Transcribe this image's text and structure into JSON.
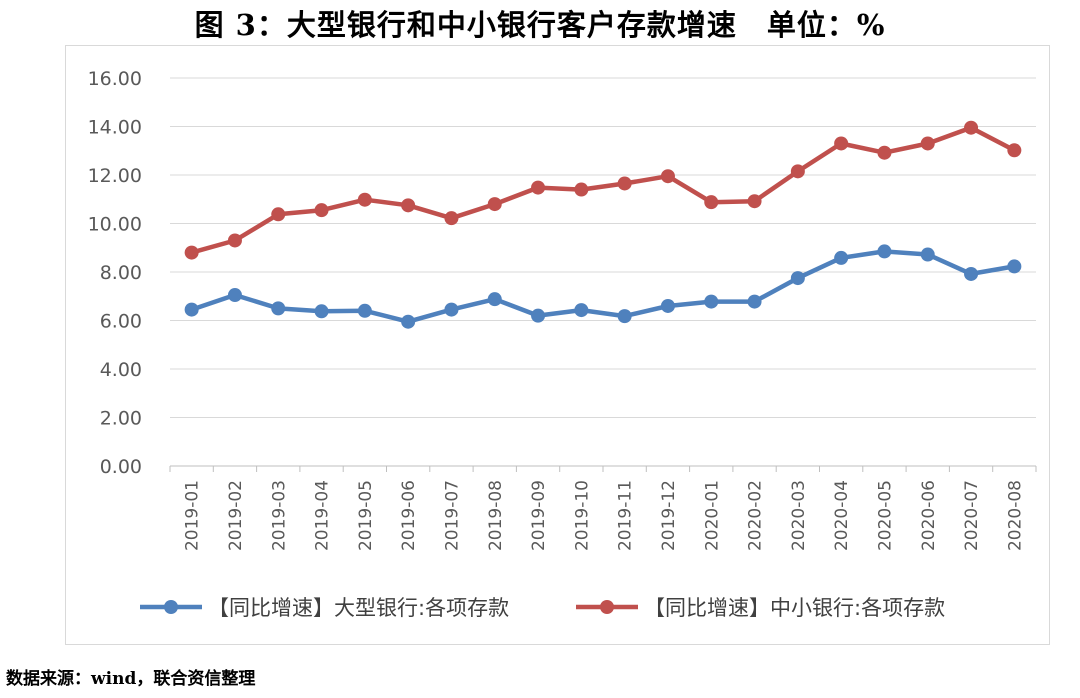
{
  "title": "图 3：大型银行和中小银行客户存款增速　单位：%",
  "source": "数据来源：wind，联合资信整理",
  "chart_data": {
    "type": "line",
    "categories": [
      "2019-01",
      "2019-02",
      "2019-03",
      "2019-04",
      "2019-05",
      "2019-06",
      "2019-07",
      "2019-08",
      "2019-09",
      "2019-10",
      "2019-11",
      "2019-12",
      "2020-01",
      "2020-02",
      "2020-03",
      "2020-04",
      "2020-05",
      "2020-06",
      "2020-07",
      "2020-08"
    ],
    "series": [
      {
        "name": "【同比增速】大型银行:各项存款",
        "color": "#4f81bd",
        "values": [
          6.45,
          7.05,
          6.5,
          6.38,
          6.4,
          5.95,
          6.45,
          6.88,
          6.2,
          6.43,
          6.18,
          6.6,
          6.78,
          6.78,
          7.75,
          8.58,
          8.85,
          8.72,
          7.92,
          8.23
        ]
      },
      {
        "name": "【同比增速】中小银行:各项存款",
        "color": "#c0504d",
        "values": [
          8.8,
          9.3,
          10.38,
          10.55,
          10.98,
          10.75,
          10.22,
          10.8,
          11.48,
          11.4,
          11.65,
          11.95,
          10.88,
          10.92,
          12.15,
          13.3,
          12.92,
          13.3,
          13.95,
          13.02
        ]
      }
    ],
    "ylim": [
      0,
      16
    ],
    "yticks": [
      "0.00",
      "2.00",
      "4.00",
      "6.00",
      "8.00",
      "10.00",
      "12.00",
      "14.00",
      "16.00"
    ],
    "grid": true,
    "legend": "bottom"
  }
}
